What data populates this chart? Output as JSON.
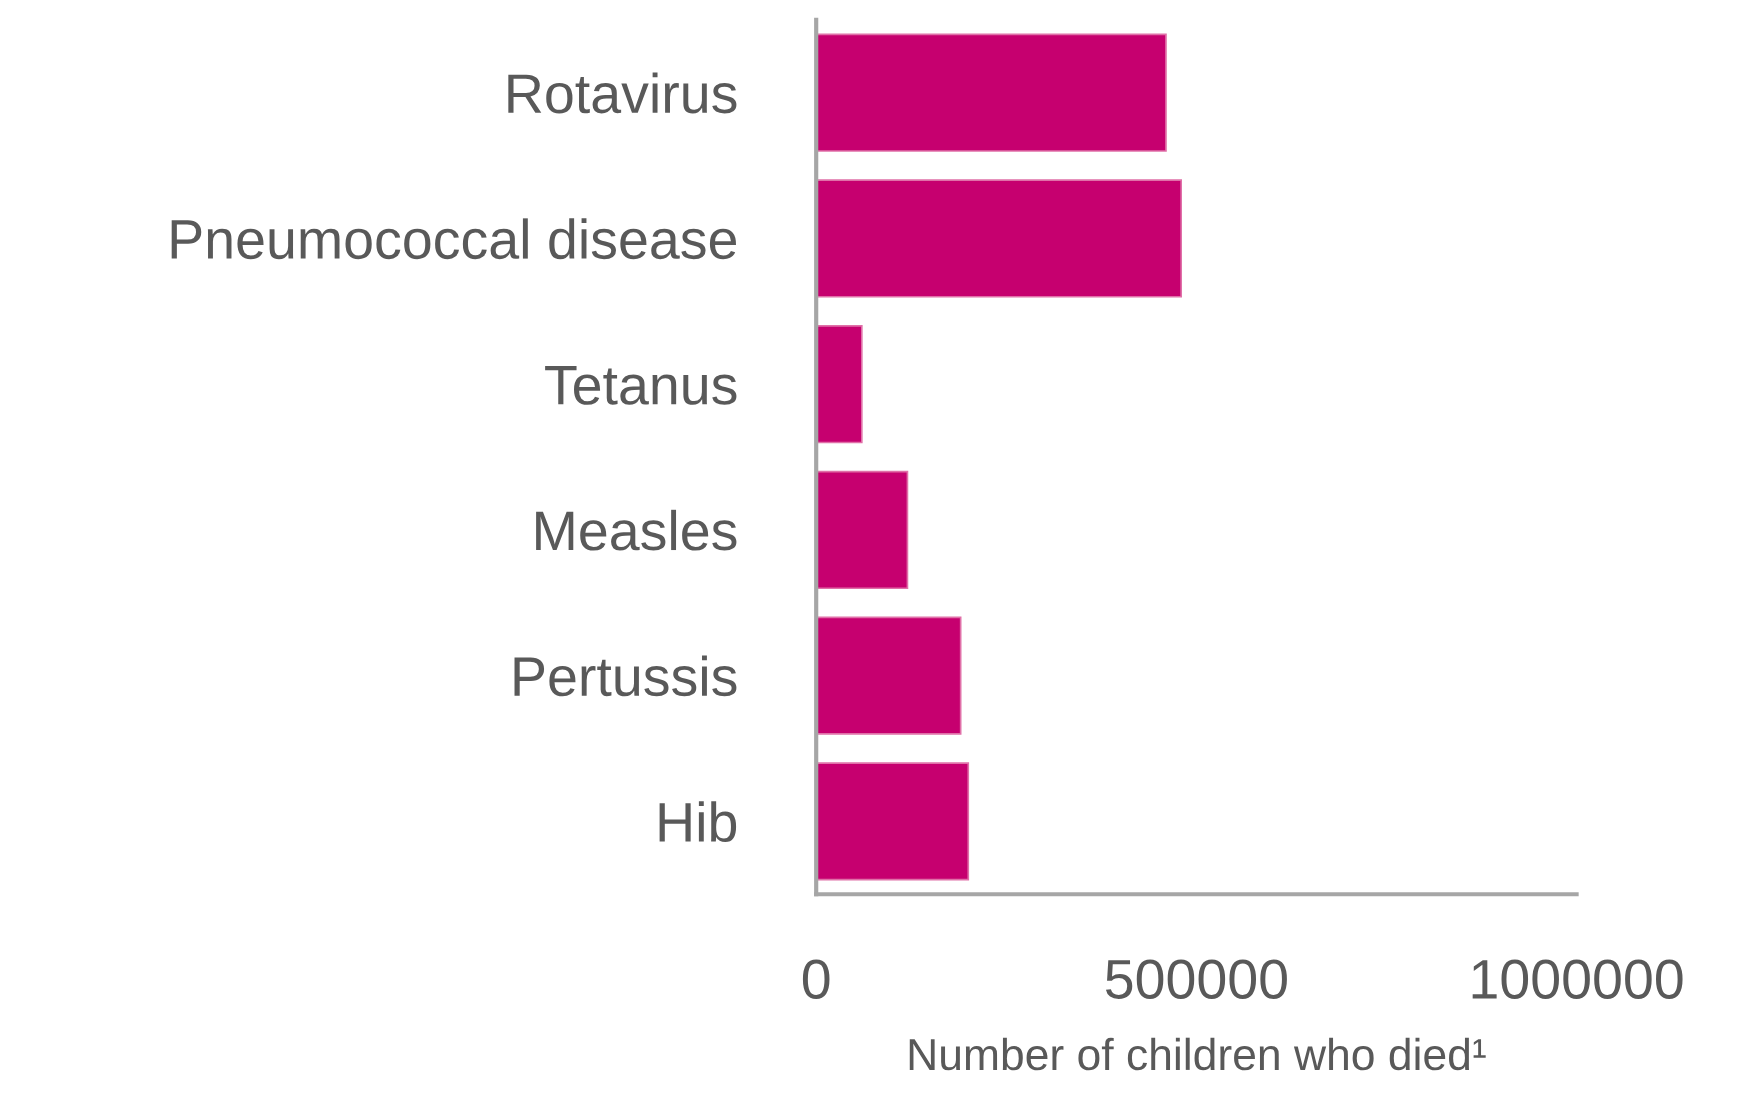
{
  "chart_data": {
    "type": "bar",
    "orientation": "horizontal",
    "categories": [
      "Rotavirus",
      "Pneumococcal disease",
      "Tetanus",
      "Measles",
      "Pertussis",
      "Hib"
    ],
    "values": [
      460000,
      480000,
      60000,
      120000,
      190000,
      200000
    ],
    "color": "#c6006f",
    "xlabel": "Number of children who died¹",
    "xlim": [
      0,
      1000000
    ],
    "xticks": [
      0,
      500000,
      1000000
    ],
    "grid": false,
    "legend": false
  }
}
